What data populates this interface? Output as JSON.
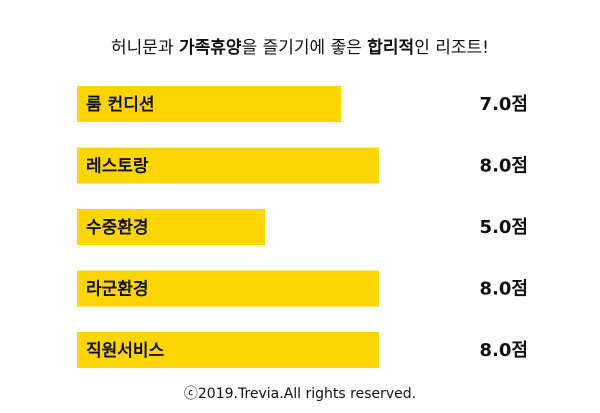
{
  "chart_data": {
    "type": "bar",
    "title": [
      {
        "text": "허니문과 ",
        "bold": false
      },
      {
        "text": "가족휴양",
        "bold": true
      },
      {
        "text": "을 즐기기에 좋은 ",
        "bold": false
      },
      {
        "text": "합리적",
        "bold": true
      },
      {
        "text": "인 리조트!",
        "bold": false
      }
    ],
    "categories": [
      "룸 컨디션",
      "레스토랑",
      "수중환경",
      "라군환경",
      "직원서비스"
    ],
    "values": [
      7.0,
      8.0,
      5.0,
      8.0,
      8.0
    ],
    "value_labels": [
      "7.0점",
      "8.0점",
      "5.0점",
      "8.0점",
      "8.0점"
    ],
    "color": "#ffd500",
    "xlim": [
      0,
      10
    ],
    "footer": "ⓒ2019.Trevia.All rights reserved."
  }
}
